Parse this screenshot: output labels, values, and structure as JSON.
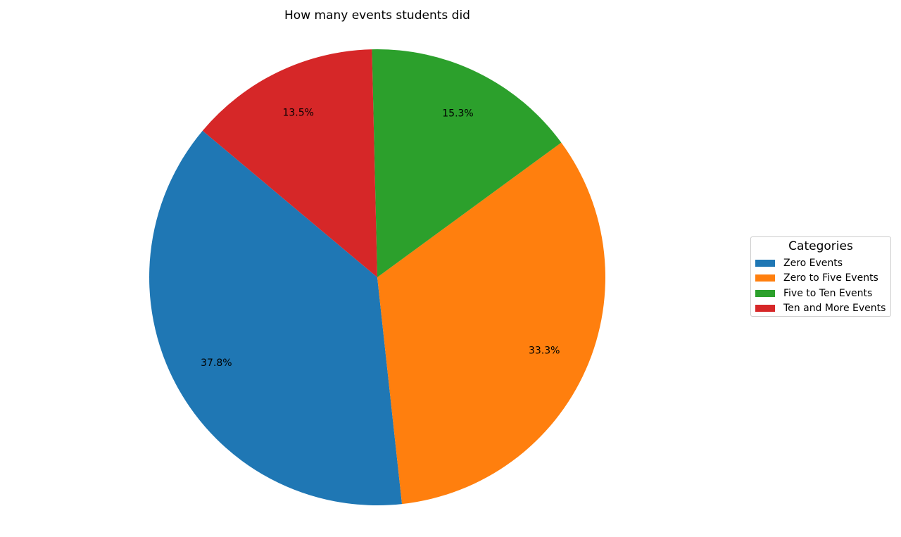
{
  "chart_data": {
    "type": "pie",
    "title": "How many events students did",
    "categories": [
      "Zero Events",
      "Zero to Five Events",
      "Five to Ten Events",
      "Ten and More Events"
    ],
    "values": [
      37.8,
      33.3,
      15.3,
      13.5
    ],
    "value_labels": [
      "37.8%",
      "33.3%",
      "15.3%",
      "13.5%"
    ],
    "colors": [
      "#1f77b4",
      "#ff7f0e",
      "#2ca02c",
      "#d62728"
    ],
    "legend": {
      "title": "Categories",
      "placement": "right"
    }
  }
}
